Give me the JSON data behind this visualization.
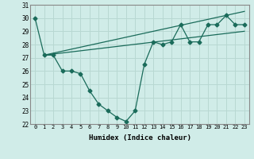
{
  "line1_x": [
    0,
    1,
    2,
    3,
    4,
    5,
    6,
    7,
    8,
    9,
    10,
    11,
    12,
    13,
    14,
    15,
    16,
    17,
    18,
    19,
    20,
    21,
    22,
    23
  ],
  "line1_y": [
    30.0,
    27.2,
    27.2,
    26.0,
    26.0,
    25.8,
    24.5,
    23.5,
    23.0,
    22.5,
    22.2,
    23.0,
    26.5,
    28.2,
    28.0,
    28.2,
    29.5,
    28.2,
    28.2,
    29.5,
    29.5,
    30.2,
    29.5,
    29.5
  ],
  "line2_x": [
    1,
    23
  ],
  "line2_y": [
    27.2,
    30.5
  ],
  "line3_x": [
    1,
    23
  ],
  "line3_y": [
    27.2,
    29.0
  ],
  "line_color": "#1a6b5a",
  "bg_color": "#d0ece8",
  "grid_color": "#b8d8d2",
  "xlabel": "Humidex (Indice chaleur)",
  "ylim": [
    22,
    31
  ],
  "xlim": [
    -0.5,
    23.5
  ],
  "yticks": [
    22,
    23,
    24,
    25,
    26,
    27,
    28,
    29,
    30,
    31
  ],
  "xticks": [
    0,
    1,
    2,
    3,
    4,
    5,
    6,
    7,
    8,
    9,
    10,
    11,
    12,
    13,
    14,
    15,
    16,
    17,
    18,
    19,
    20,
    21,
    22,
    23
  ]
}
